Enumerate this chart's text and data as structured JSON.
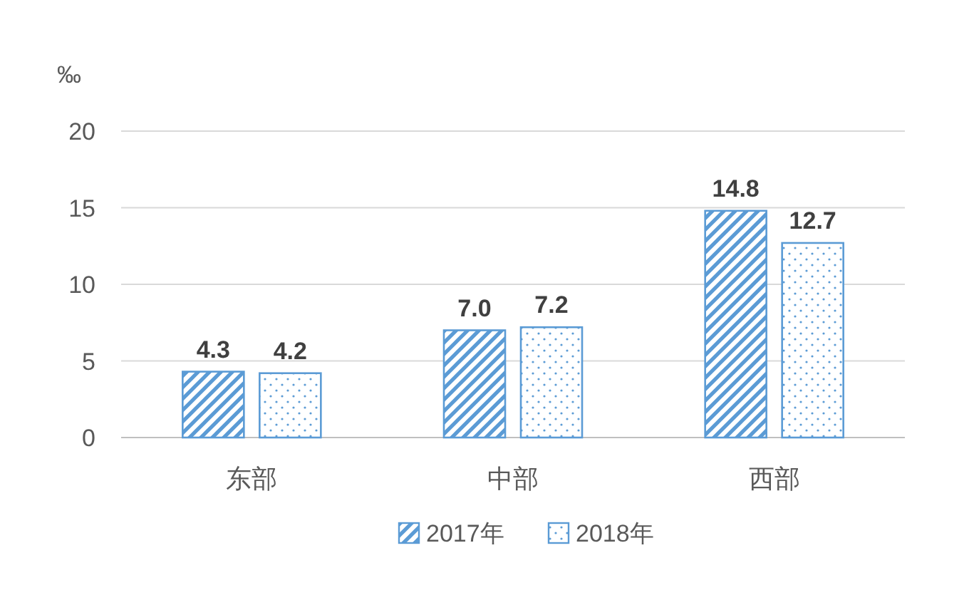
{
  "chart_data": {
    "type": "bar",
    "ylabel": "‰",
    "categories": [
      "东部",
      "中部",
      "西部"
    ],
    "series": [
      {
        "name": "2017年",
        "color": "#5b9bd5",
        "values": [
          4.3,
          7.0,
          14.8
        ],
        "value_labels": [
          "4.3",
          "7.0",
          "14.8"
        ]
      },
      {
        "name": "2018年",
        "color": "#5b9bd5",
        "values": [
          4.2,
          7.2,
          12.7
        ],
        "value_labels": [
          "4.2",
          "7.2",
          "12.7"
        ]
      }
    ],
    "ylim": [
      0,
      20
    ],
    "yticks": [
      0,
      5,
      10,
      15,
      20
    ],
    "grid": "y",
    "legend": "bottom"
  }
}
